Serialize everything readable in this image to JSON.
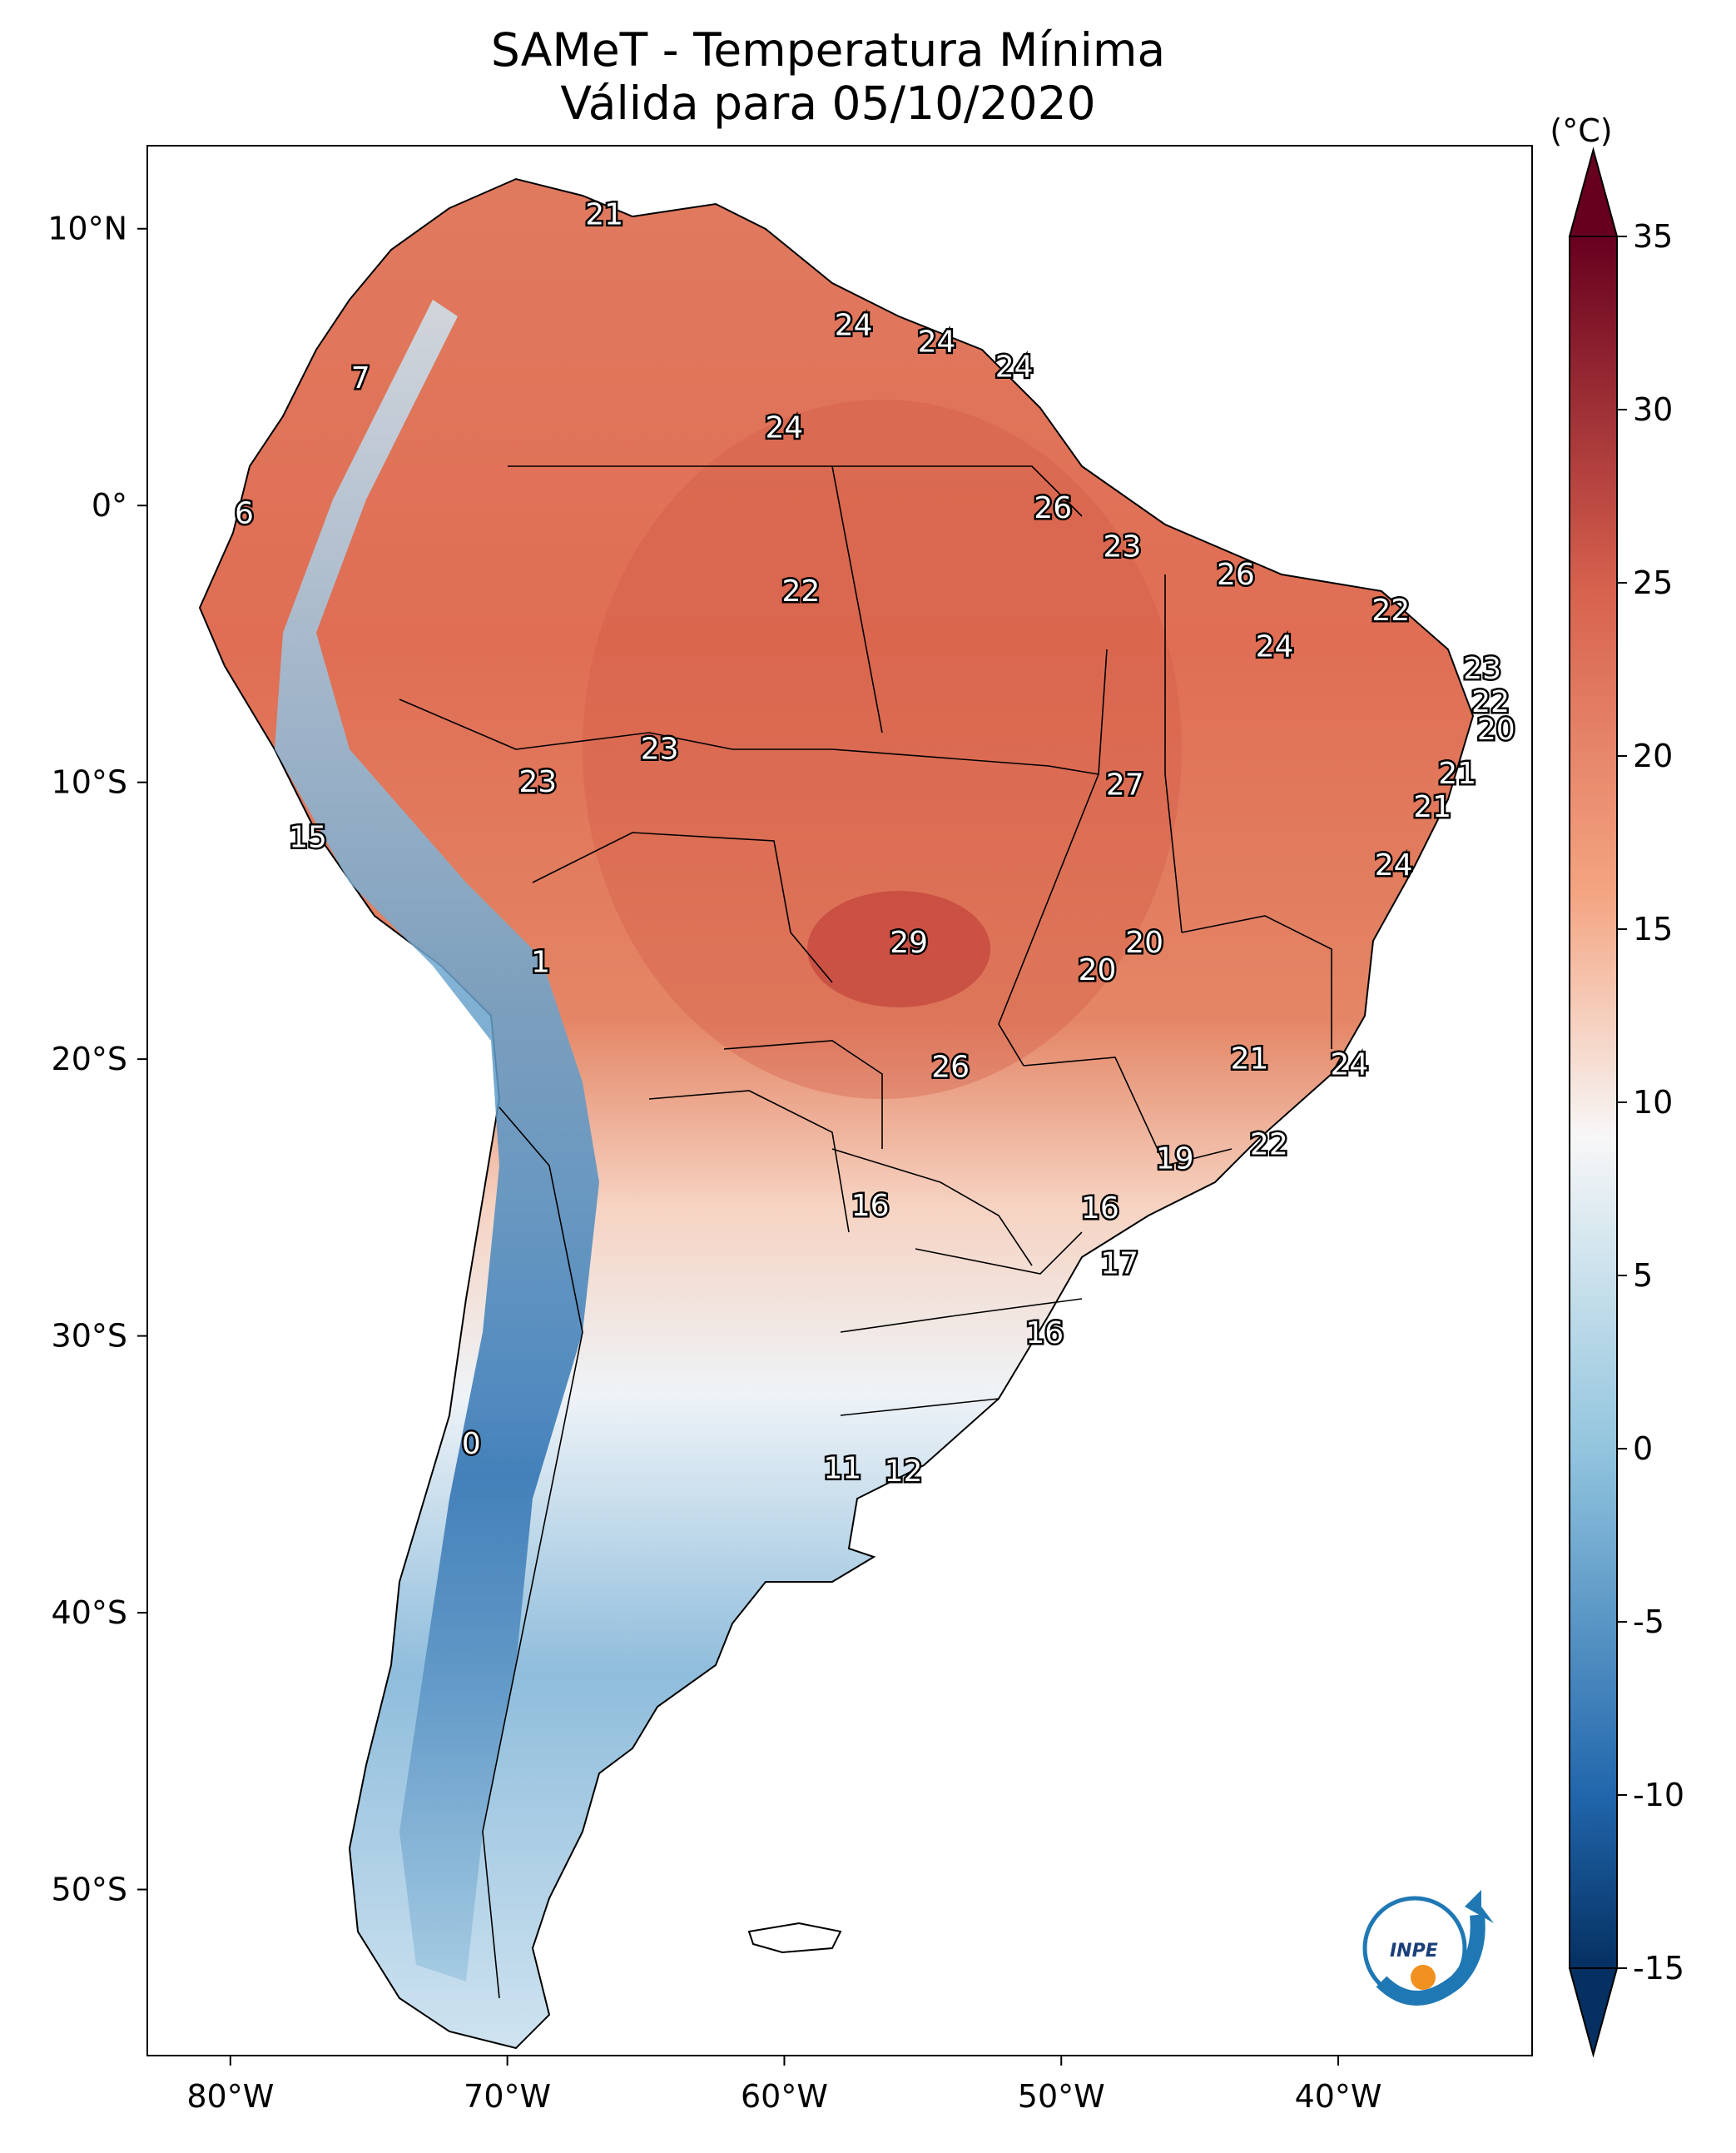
{
  "title": {
    "line1": "SAMeT - Temperatura Mínima",
    "line2": "Válida para 05/10/2020"
  },
  "axes": {
    "lon_ticks": [
      "80°W",
      "70°W",
      "60°W",
      "50°W",
      "40°W"
    ],
    "lat_ticks": [
      "10°N",
      "0°",
      "10°S",
      "20°S",
      "30°S",
      "40°S",
      "50°S"
    ]
  },
  "colorbar": {
    "unit": "(°C)",
    "ticks": [
      "35",
      "30",
      "25",
      "20",
      "15",
      "10",
      "5",
      "0",
      "-5",
      "-10",
      "-15"
    ],
    "min": -15,
    "max": 35,
    "colors": {
      "cold_end": "#053061",
      "cold": "#2166ac",
      "cool": "#92c5de",
      "neutral": "#f7f7f7",
      "warm": "#f4a582",
      "hot": "#d6604d",
      "hot_end": "#67001f"
    }
  },
  "logo": {
    "text": "INPE",
    "icon": "inpe-logo-icon"
  },
  "labels": [
    {
      "t": "21",
      "lon": -66.5,
      "lat": 10.5
    },
    {
      "t": "24",
      "lon": -57.5,
      "lat": 6.5
    },
    {
      "t": "24",
      "lon": -54.5,
      "lat": 5.9
    },
    {
      "t": "24",
      "lon": -51.7,
      "lat": 5.0
    },
    {
      "t": "7",
      "lon": -75.3,
      "lat": 4.6
    },
    {
      "t": "24",
      "lon": -60.0,
      "lat": 2.8
    },
    {
      "t": "6",
      "lon": -79.5,
      "lat": -0.3
    },
    {
      "t": "26",
      "lon": -50.3,
      "lat": -0.1
    },
    {
      "t": "23",
      "lon": -47.8,
      "lat": -1.5
    },
    {
      "t": "26",
      "lon": -43.7,
      "lat": -2.5
    },
    {
      "t": "22",
      "lon": -59.4,
      "lat": -3.1
    },
    {
      "t": "22",
      "lon": -38.1,
      "lat": -3.8
    },
    {
      "t": "24",
      "lon": -42.3,
      "lat": -5.1
    },
    {
      "t": "23",
      "lon": -34.8,
      "lat": -5.9
    },
    {
      "t": "22",
      "lon": -34.5,
      "lat": -7.1
    },
    {
      "t": "20",
      "lon": -34.3,
      "lat": -8.1
    },
    {
      "t": "23",
      "lon": -64.5,
      "lat": -8.8
    },
    {
      "t": "21",
      "lon": -35.7,
      "lat": -9.7
    },
    {
      "t": "23",
      "lon": -68.9,
      "lat": -10.0
    },
    {
      "t": "27",
      "lon": -47.7,
      "lat": -10.1
    },
    {
      "t": "21",
      "lon": -36.6,
      "lat": -10.9
    },
    {
      "t": "15",
      "lon": -77.2,
      "lat": -12.0
    },
    {
      "t": "24",
      "lon": -38.0,
      "lat": -13.0
    },
    {
      "t": "29",
      "lon": -55.5,
      "lat": -15.8
    },
    {
      "t": "20",
      "lon": -47.0,
      "lat": -15.8
    },
    {
      "t": "1",
      "lon": -68.8,
      "lat": -16.5
    },
    {
      "t": "20",
      "lon": -48.7,
      "lat": -16.8
    },
    {
      "t": "21",
      "lon": -43.2,
      "lat": -20.0
    },
    {
      "t": "24",
      "lon": -39.6,
      "lat": -20.2
    },
    {
      "t": "26",
      "lon": -54.0,
      "lat": -20.3
    },
    {
      "t": "22",
      "lon": -42.5,
      "lat": -23.1
    },
    {
      "t": "19",
      "lon": -45.9,
      "lat": -23.6
    },
    {
      "t": "16",
      "lon": -56.9,
      "lat": -25.3
    },
    {
      "t": "16",
      "lon": -48.6,
      "lat": -25.4
    },
    {
      "t": "17",
      "lon": -47.9,
      "lat": -27.4
    },
    {
      "t": "16",
      "lon": -50.6,
      "lat": -29.9
    },
    {
      "t": "0",
      "lon": -71.3,
      "lat": -33.9
    },
    {
      "t": "11",
      "lon": -57.9,
      "lat": -34.8
    },
    {
      "t": "12",
      "lon": -55.7,
      "lat": -34.9
    }
  ]
}
